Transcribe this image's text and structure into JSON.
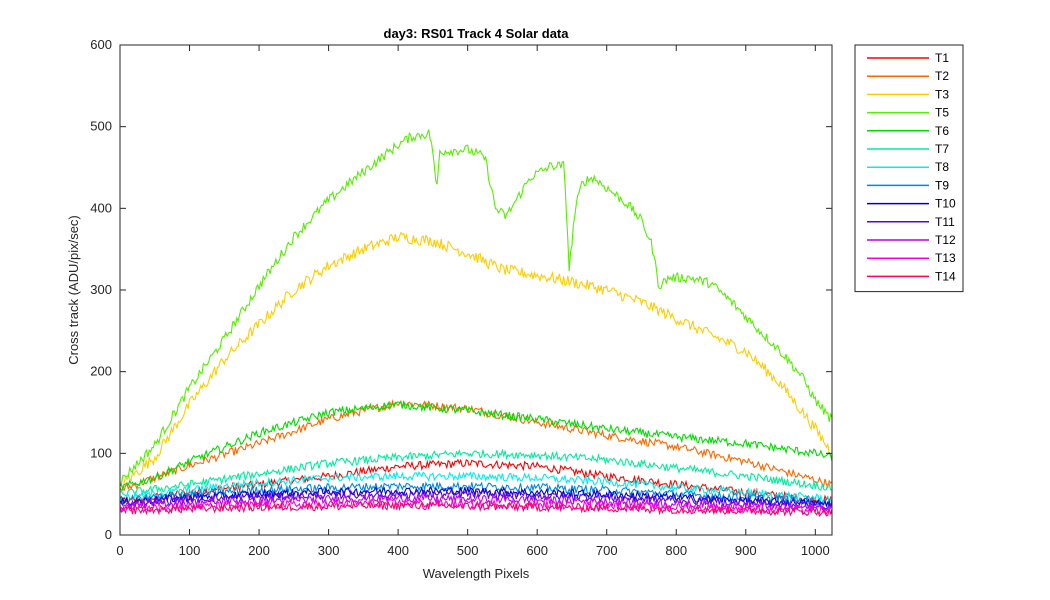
{
  "chart_data": {
    "type": "line",
    "title": "day3: RS01  Track 4 Solar data",
    "xlabel": "Wavelength Pixels",
    "ylabel": "Cross track (ADU/pix/sec)",
    "xlim": [
      0,
      1024
    ],
    "ylim": [
      0,
      600
    ],
    "xticks": [
      "0",
      "100",
      "200",
      "300",
      "400",
      "500",
      "600",
      "700",
      "800",
      "900",
      "1000"
    ],
    "yticks": [
      "0",
      "100",
      "200",
      "300",
      "400",
      "500",
      "600"
    ],
    "grid": false,
    "legend_position": "outside-top-right",
    "series": [
      {
        "name": "T1",
        "color": "#ff0000",
        "noise": 5,
        "points": [
          [
            0,
            40
          ],
          [
            100,
            52
          ],
          [
            200,
            62
          ],
          [
            300,
            72
          ],
          [
            400,
            84
          ],
          [
            500,
            88
          ],
          [
            600,
            84
          ],
          [
            700,
            72
          ],
          [
            800,
            62
          ],
          [
            900,
            52
          ],
          [
            1024,
            42
          ]
        ]
      },
      {
        "name": "T2",
        "color": "#ff6600",
        "noise": 5,
        "points": [
          [
            0,
            55
          ],
          [
            100,
            85
          ],
          [
            200,
            112
          ],
          [
            300,
            142
          ],
          [
            400,
            162
          ],
          [
            500,
            155
          ],
          [
            600,
            138
          ],
          [
            700,
            122
          ],
          [
            800,
            108
          ],
          [
            900,
            90
          ],
          [
            1024,
            62
          ]
        ]
      },
      {
        "name": "T3",
        "color": "#ffcc00",
        "noise": 7,
        "points": [
          [
            0,
            60
          ],
          [
            50,
            95
          ],
          [
            100,
            160
          ],
          [
            150,
            215
          ],
          [
            200,
            258
          ],
          [
            250,
            300
          ],
          [
            300,
            330
          ],
          [
            350,
            350
          ],
          [
            400,
            365
          ],
          [
            450,
            360
          ],
          [
            500,
            345
          ],
          [
            550,
            325
          ],
          [
            600,
            318
          ],
          [
            650,
            310
          ],
          [
            700,
            300
          ],
          [
            750,
            285
          ],
          [
            800,
            265
          ],
          [
            850,
            245
          ],
          [
            900,
            225
          ],
          [
            950,
            185
          ],
          [
            1000,
            130
          ],
          [
            1024,
            100
          ]
        ]
      },
      {
        "name": "T5",
        "color": "#55ee00",
        "noise": 6,
        "points": [
          [
            0,
            65
          ],
          [
            50,
            110
          ],
          [
            100,
            180
          ],
          [
            150,
            240
          ],
          [
            200,
            305
          ],
          [
            250,
            365
          ],
          [
            300,
            410
          ],
          [
            350,
            445
          ],
          [
            400,
            478
          ],
          [
            420,
            488
          ],
          [
            445,
            492
          ],
          [
            450,
            470
          ],
          [
            455,
            420
          ],
          [
            460,
            470
          ],
          [
            500,
            472
          ],
          [
            525,
            462
          ],
          [
            540,
            400
          ],
          [
            555,
            390
          ],
          [
            570,
            410
          ],
          [
            590,
            438
          ],
          [
            620,
            452
          ],
          [
            638,
            452
          ],
          [
            642,
            400
          ],
          [
            646,
            325
          ],
          [
            650,
            360
          ],
          [
            655,
            400
          ],
          [
            665,
            432
          ],
          [
            680,
            438
          ],
          [
            700,
            425
          ],
          [
            730,
            405
          ],
          [
            750,
            385
          ],
          [
            765,
            355
          ],
          [
            775,
            305
          ],
          [
            790,
            315
          ],
          [
            820,
            315
          ],
          [
            850,
            308
          ],
          [
            880,
            285
          ],
          [
            920,
            250
          ],
          [
            950,
            225
          ],
          [
            980,
            195
          ],
          [
            1000,
            165
          ],
          [
            1024,
            140
          ]
        ]
      },
      {
        "name": "T6",
        "color": "#00dd00",
        "noise": 5,
        "points": [
          [
            0,
            58
          ],
          [
            50,
            70
          ],
          [
            100,
            90
          ],
          [
            200,
            125
          ],
          [
            300,
            150
          ],
          [
            400,
            160
          ],
          [
            500,
            152
          ],
          [
            600,
            142
          ],
          [
            700,
            130
          ],
          [
            800,
            120
          ],
          [
            900,
            112
          ],
          [
            1000,
            100
          ],
          [
            1024,
            95
          ]
        ]
      },
      {
        "name": "T7",
        "color": "#00ee99",
        "noise": 5,
        "points": [
          [
            0,
            50
          ],
          [
            100,
            62
          ],
          [
            200,
            75
          ],
          [
            300,
            88
          ],
          [
            400,
            95
          ],
          [
            500,
            100
          ],
          [
            600,
            98
          ],
          [
            700,
            92
          ],
          [
            800,
            82
          ],
          [
            900,
            72
          ],
          [
            1024,
            58
          ]
        ]
      },
      {
        "name": "T8",
        "color": "#00eeee",
        "noise": 5,
        "points": [
          [
            0,
            45
          ],
          [
            100,
            55
          ],
          [
            200,
            64
          ],
          [
            300,
            70
          ],
          [
            400,
            72
          ],
          [
            500,
            72
          ],
          [
            600,
            70
          ],
          [
            700,
            65
          ],
          [
            800,
            58
          ],
          [
            900,
            52
          ],
          [
            1024,
            44
          ]
        ]
      },
      {
        "name": "T9",
        "color": "#0088ee",
        "noise": 5,
        "points": [
          [
            0,
            42
          ],
          [
            100,
            50
          ],
          [
            200,
            55
          ],
          [
            300,
            58
          ],
          [
            400,
            60
          ],
          [
            500,
            60
          ],
          [
            600,
            58
          ],
          [
            700,
            55
          ],
          [
            800,
            50
          ],
          [
            900,
            46
          ],
          [
            1024,
            40
          ]
        ]
      },
      {
        "name": "T10",
        "color": "#0000cc",
        "noise": 5,
        "points": [
          [
            0,
            40
          ],
          [
            100,
            46
          ],
          [
            200,
            50
          ],
          [
            300,
            53
          ],
          [
            400,
            54
          ],
          [
            500,
            54
          ],
          [
            600,
            52
          ],
          [
            700,
            50
          ],
          [
            800,
            46
          ],
          [
            900,
            42
          ],
          [
            1024,
            38
          ]
        ]
      },
      {
        "name": "T11",
        "color": "#5500ee",
        "noise": 5,
        "points": [
          [
            0,
            38
          ],
          [
            100,
            44
          ],
          [
            200,
            47
          ],
          [
            300,
            49
          ],
          [
            400,
            50
          ],
          [
            500,
            50
          ],
          [
            600,
            48
          ],
          [
            700,
            46
          ],
          [
            800,
            43
          ],
          [
            900,
            40
          ],
          [
            1024,
            36
          ]
        ]
      },
      {
        "name": "T12",
        "color": "#bb00ee",
        "noise": 5,
        "points": [
          [
            0,
            36
          ],
          [
            100,
            40
          ],
          [
            200,
            42
          ],
          [
            300,
            44
          ],
          [
            400,
            45
          ],
          [
            500,
            44
          ],
          [
            600,
            43
          ],
          [
            700,
            41
          ],
          [
            800,
            38
          ],
          [
            900,
            36
          ],
          [
            1024,
            33
          ]
        ]
      },
      {
        "name": "T13",
        "color": "#ff00dd",
        "noise": 5,
        "points": [
          [
            0,
            32
          ],
          [
            100,
            35
          ],
          [
            200,
            37
          ],
          [
            300,
            38
          ],
          [
            400,
            39
          ],
          [
            500,
            38
          ],
          [
            600,
            37
          ],
          [
            700,
            36
          ],
          [
            800,
            34
          ],
          [
            900,
            32
          ],
          [
            1024,
            30
          ]
        ]
      },
      {
        "name": "T14",
        "color": "#ff0066",
        "noise": 5,
        "points": [
          [
            0,
            30
          ],
          [
            100,
            32
          ],
          [
            200,
            34
          ],
          [
            300,
            35
          ],
          [
            400,
            36
          ],
          [
            500,
            35
          ],
          [
            600,
            34
          ],
          [
            700,
            33
          ],
          [
            800,
            31
          ],
          [
            900,
            30
          ],
          [
            1024,
            28
          ]
        ]
      }
    ]
  }
}
